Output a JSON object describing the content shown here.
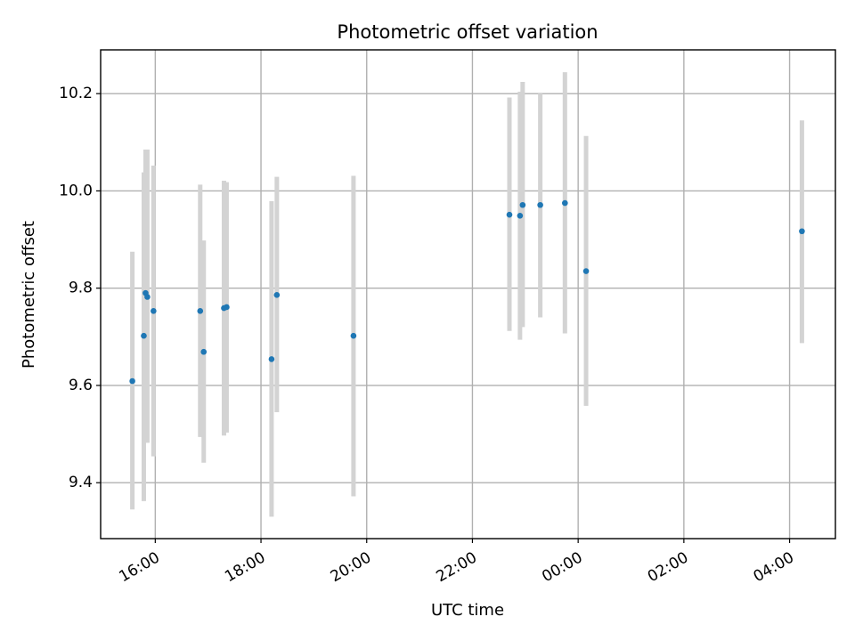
{
  "chart_data": {
    "type": "scatter",
    "title": "Photometric offset variation",
    "xlabel": "UTC time",
    "ylabel": "Photometric offset",
    "x_axis": {
      "kind": "datetime",
      "range": [
        "2023-01-01T14:58",
        "2023-01-02T04:52"
      ],
      "ticks": [
        "2023-01-01T16:00",
        "2023-01-01T18:00",
        "2023-01-01T20:00",
        "2023-01-01T22:00",
        "2023-01-02T00:00",
        "2023-01-02T02:00",
        "2023-01-02T04:00"
      ],
      "tick_labels": [
        "16:00",
        "18:00",
        "20:00",
        "22:00",
        "00:00",
        "02:00",
        "04:00"
      ]
    },
    "y_axis": {
      "range": [
        9.285,
        10.29
      ],
      "ticks": [
        9.4,
        9.6,
        9.8,
        10.0,
        10.2
      ],
      "tick_labels": [
        "9.4",
        "9.6",
        "9.8",
        "10.0",
        "10.2"
      ]
    },
    "grid": true,
    "legend": "none",
    "colors": {
      "point": "#1f77b4",
      "error_bar": "#d3d3d3",
      "grid": "#b0b0b0"
    },
    "points": [
      {
        "t": "2023-01-01T15:34",
        "y": 9.609,
        "low": 9.345,
        "high": 9.875
      },
      {
        "t": "2023-01-01T15:47",
        "y": 9.702,
        "low": 9.362,
        "high": 10.038
      },
      {
        "t": "2023-01-01T15:49",
        "y": 9.79,
        "low": 9.5,
        "high": 10.085
      },
      {
        "t": "2023-01-01T15:51",
        "y": 9.782,
        "low": 9.482,
        "high": 10.085
      },
      {
        "t": "2023-01-01T15:58",
        "y": 9.753,
        "low": 9.454,
        "high": 10.052
      },
      {
        "t": "2023-01-01T16:51",
        "y": 9.753,
        "low": 9.494,
        "high": 10.013
      },
      {
        "t": "2023-01-01T16:55",
        "y": 9.669,
        "low": 9.441,
        "high": 9.898
      },
      {
        "t": "2023-01-01T17:18",
        "y": 9.759,
        "low": 9.497,
        "high": 10.021
      },
      {
        "t": "2023-01-01T17:21",
        "y": 9.761,
        "low": 9.503,
        "high": 10.018
      },
      {
        "t": "2023-01-01T18:12",
        "y": 9.654,
        "low": 9.33,
        "high": 9.979
      },
      {
        "t": "2023-01-01T18:18",
        "y": 9.786,
        "low": 9.545,
        "high": 10.029
      },
      {
        "t": "2023-01-01T19:45",
        "y": 9.702,
        "low": 9.372,
        "high": 10.031
      },
      {
        "t": "2023-01-01T22:42",
        "y": 9.951,
        "low": 9.712,
        "high": 10.192
      },
      {
        "t": "2023-01-01T22:54",
        "y": 9.949,
        "low": 9.694,
        "high": 10.204
      },
      {
        "t": "2023-01-01T22:57",
        "y": 9.971,
        "low": 9.72,
        "high": 10.224
      },
      {
        "t": "2023-01-01T23:17",
        "y": 9.971,
        "low": 9.74,
        "high": 10.2
      },
      {
        "t": "2023-01-01T23:45",
        "y": 9.975,
        "low": 9.707,
        "high": 10.244
      },
      {
        "t": "2023-01-02T00:09",
        "y": 9.835,
        "low": 9.558,
        "high": 10.113
      },
      {
        "t": "2023-01-02T04:14",
        "y": 9.917,
        "low": 9.687,
        "high": 10.145
      }
    ]
  }
}
